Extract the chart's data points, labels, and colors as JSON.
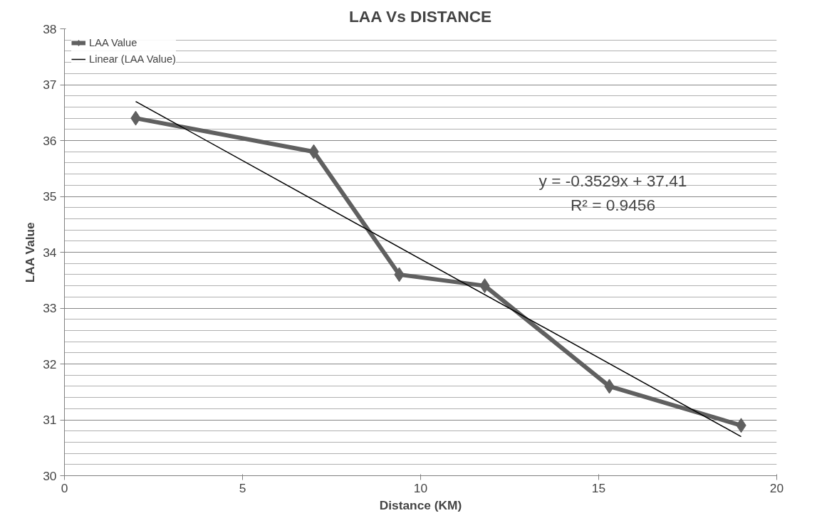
{
  "chart_data": {
    "type": "line",
    "title": "LAA Vs DISTANCE",
    "xlabel": "Distance (KM)",
    "ylabel": "LAA Value",
    "x": [
      2,
      7,
      9.4,
      11.8,
      15.3,
      19
    ],
    "series": [
      {
        "name": "LAA Value",
        "color": "#606060",
        "values": [
          36.4,
          35.8,
          33.6,
          33.4,
          31.6,
          30.9
        ],
        "marker": "diamond"
      },
      {
        "name": "Linear (LAA Value)",
        "color": "#000000",
        "type": "line",
        "x": [
          2,
          19
        ],
        "values": [
          36.7,
          30.7
        ],
        "marker": "none"
      }
    ],
    "annotations": [
      "y = -0.3529x + 37.41",
      "R² = 0.9456"
    ],
    "xlim": [
      0,
      20
    ],
    "xticks": [
      0,
      5,
      10,
      15,
      20
    ],
    "ylim": [
      30,
      38
    ],
    "yticks": [
      30,
      31,
      32,
      33,
      34,
      35,
      36,
      37,
      38
    ],
    "grid": "y",
    "legend": "top left"
  }
}
